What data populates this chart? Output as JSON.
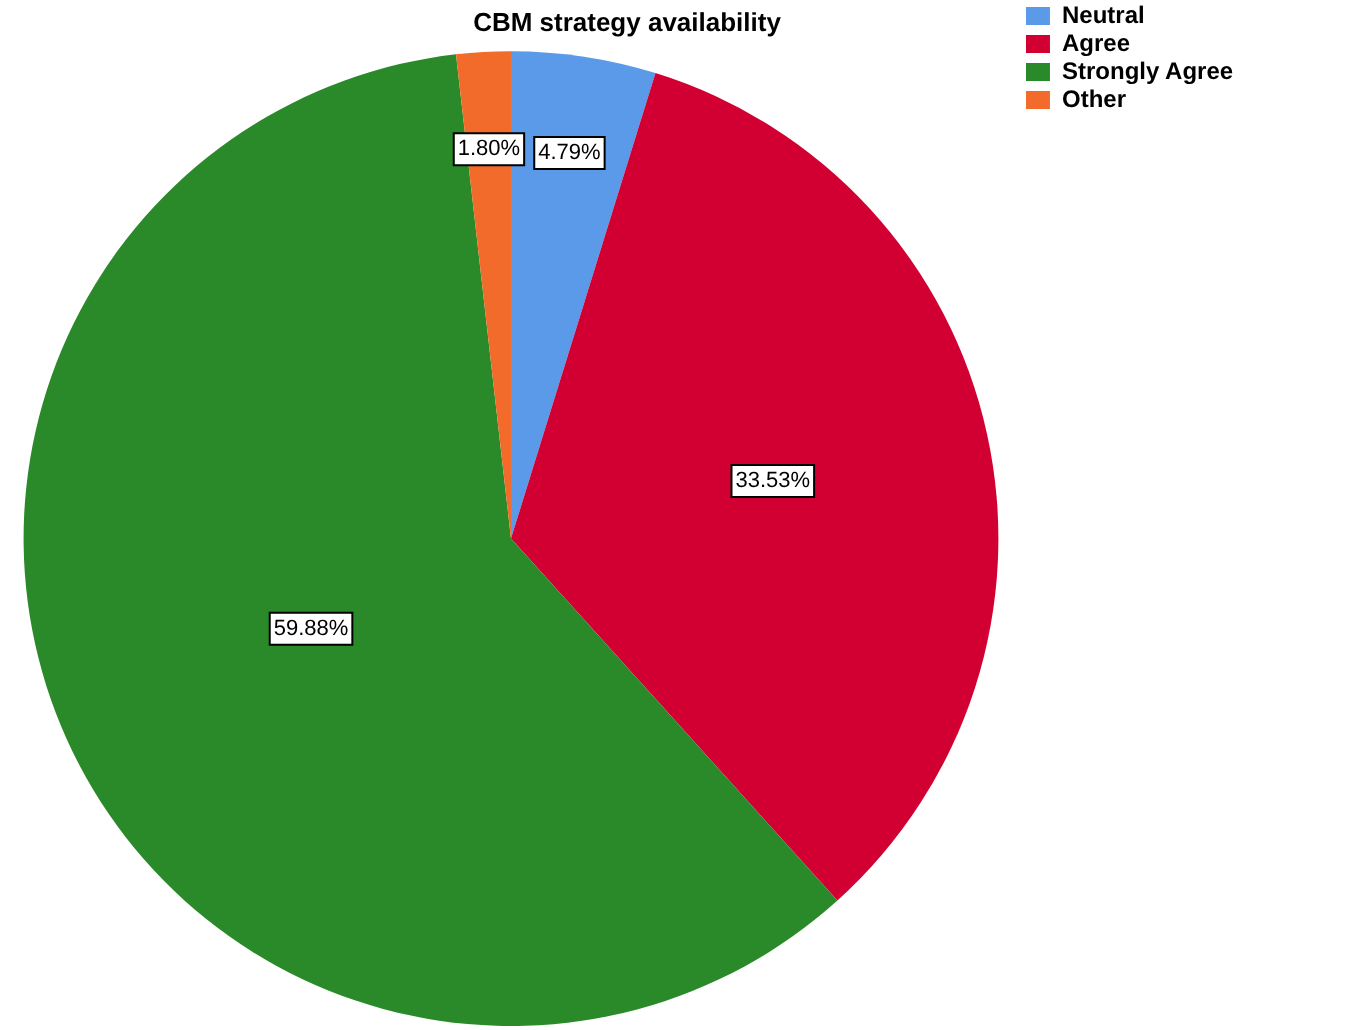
{
  "chart_data": {
    "type": "pie",
    "title": "CBM strategy availability",
    "categories": [
      "Neutral",
      "Agree",
      "Strongly Agree",
      "Other"
    ],
    "values": [
      4.79,
      33.53,
      59.88,
      1.8
    ],
    "colors": [
      "#5a9ae8",
      "#d20032",
      "#2a8a2a",
      "#f26b2a"
    ],
    "value_labels": [
      "4.79%",
      "33.53%",
      "59.88%",
      "1.80%"
    ],
    "legend": "top right"
  }
}
